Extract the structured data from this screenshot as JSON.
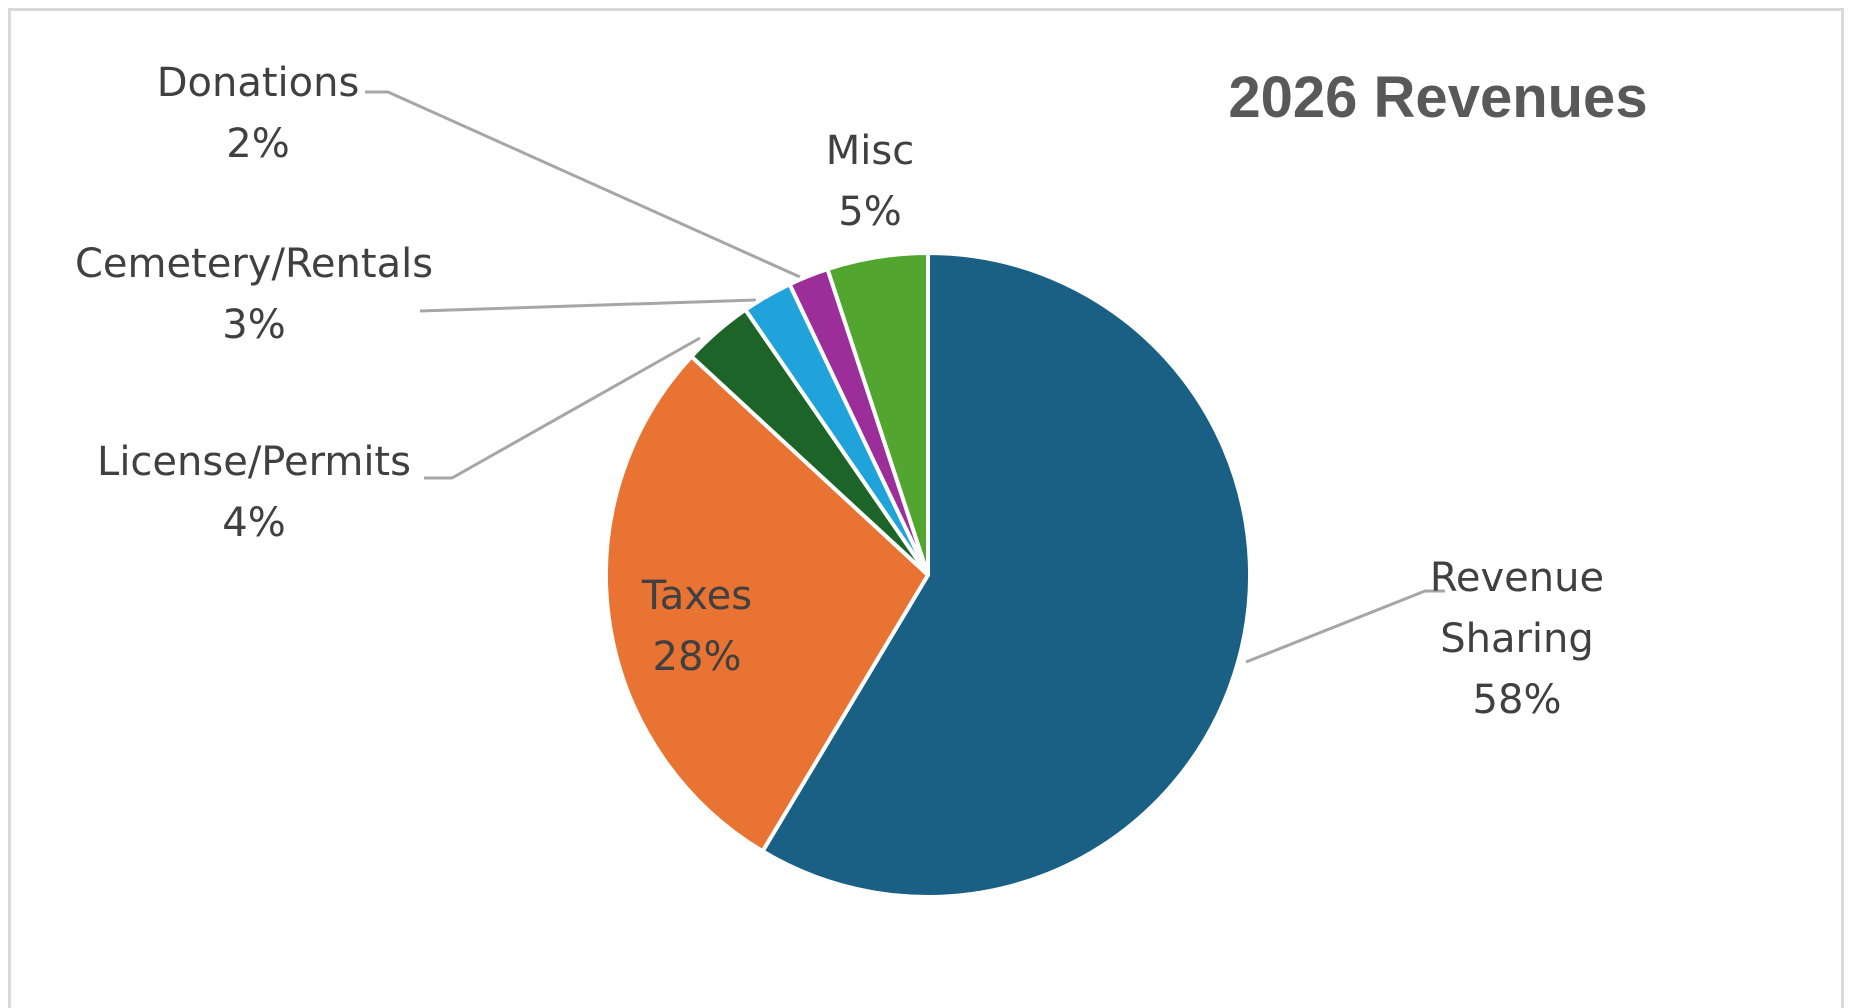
{
  "chart_data": {
    "type": "pie",
    "title": "2026 Revenues",
    "slices": [
      {
        "label": "Revenue Sharing",
        "label_lines": [
          "Revenue",
          "Sharing"
        ],
        "value": 58,
        "value_label": "58%",
        "color": "#1a5f84",
        "label_position": "outside-right"
      },
      {
        "label": "Taxes",
        "label_lines": [
          "Taxes"
        ],
        "value": 28,
        "value_label": "28%",
        "color": "#e87332",
        "label_position": "inside"
      },
      {
        "label": "License/Permits",
        "label_lines": [
          "License/Permits"
        ],
        "value": 3.5,
        "value_label": "4%",
        "color": "#1c6428",
        "label_position": "outside-left"
      },
      {
        "label": "Cemetery/Rentals",
        "label_lines": [
          "Cemetery/Rentals"
        ],
        "value": 2.5,
        "value_label": "3%",
        "color": "#1fa3da",
        "label_position": "outside-left"
      },
      {
        "label": "Donations",
        "label_lines": [
          "Donations"
        ],
        "value": 2,
        "value_label": "2%",
        "color": "#9c2e99",
        "label_position": "outside-top-left"
      },
      {
        "label": "Misc",
        "label_lines": [
          "Misc"
        ],
        "value": 5,
        "value_label": "5%",
        "color": "#52a630",
        "label_position": "outside-top"
      }
    ],
    "start_angle": "12 o'clock",
    "direction": "clockwise",
    "legend": "none"
  }
}
